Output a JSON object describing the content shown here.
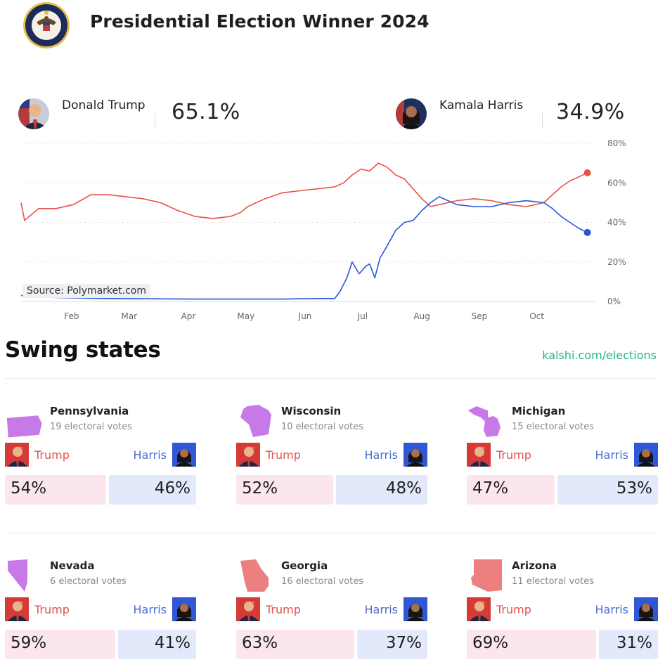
{
  "header": {
    "title": "Presidential Election Winner 2024",
    "seal_text": "SEAL OF THE PRESIDENT OF THE UNITED STATES"
  },
  "candidates": [
    {
      "name": "Donald Trump",
      "pct": "65.1%",
      "color": "#e8524a"
    },
    {
      "name": "Kamala Harris",
      "pct": "34.9%",
      "color": "#2b55d9"
    }
  ],
  "source": "Source: Polymarket.com",
  "chart_data": {
    "type": "line",
    "x_ticks": [
      "Feb",
      "Mar",
      "Apr",
      "May",
      "Jun",
      "Jul",
      "Aug",
      "Sep",
      "Oct"
    ],
    "y_ticks": [
      "0%",
      "20%",
      "40%",
      "60%",
      "80%"
    ],
    "ylim": [
      0,
      80
    ],
    "grid": true,
    "series": [
      {
        "name": "Donald Trump",
        "color": "#e8524a",
        "points": [
          [
            0,
            50
          ],
          [
            0.2,
            41
          ],
          [
            0.6,
            44
          ],
          [
            1,
            47
          ],
          [
            2,
            47
          ],
          [
            3,
            49
          ],
          [
            4,
            54
          ],
          [
            5,
            54
          ],
          [
            6,
            53
          ],
          [
            7,
            52
          ],
          [
            8,
            50
          ],
          [
            9,
            46
          ],
          [
            10,
            43
          ],
          [
            11,
            42
          ],
          [
            12,
            43
          ],
          [
            12.6,
            45
          ],
          [
            13,
            48
          ],
          [
            14,
            52
          ],
          [
            15,
            55
          ],
          [
            16,
            56
          ],
          [
            17,
            57
          ],
          [
            18,
            58
          ],
          [
            18.5,
            60
          ],
          [
            19,
            64
          ],
          [
            19.5,
            67
          ],
          [
            20,
            66
          ],
          [
            20.5,
            70
          ],
          [
            21,
            68
          ],
          [
            21.5,
            64
          ],
          [
            22,
            62
          ],
          [
            22.5,
            57
          ],
          [
            23,
            52
          ],
          [
            23.5,
            48
          ],
          [
            24,
            49
          ],
          [
            25,
            51
          ],
          [
            26,
            52
          ],
          [
            27,
            51
          ],
          [
            28,
            49
          ],
          [
            29,
            48
          ],
          [
            30,
            50
          ],
          [
            30.5,
            54
          ],
          [
            31,
            58
          ],
          [
            31.5,
            61
          ],
          [
            32,
            63
          ],
          [
            32.5,
            65.1
          ]
        ]
      },
      {
        "name": "Kamala Harris",
        "color": "#2b55d9",
        "points": [
          [
            0,
            3
          ],
          [
            2,
            2
          ],
          [
            5,
            1.5
          ],
          [
            10,
            1.2
          ],
          [
            15,
            1.2
          ],
          [
            17,
            1.5
          ],
          [
            18,
            1.5
          ],
          [
            18.3,
            5
          ],
          [
            18.7,
            12
          ],
          [
            19,
            20
          ],
          [
            19.4,
            14
          ],
          [
            19.8,
            18
          ],
          [
            20,
            19
          ],
          [
            20.3,
            12
          ],
          [
            20.6,
            22
          ],
          [
            21,
            28
          ],
          [
            21.5,
            36
          ],
          [
            22,
            40
          ],
          [
            22.5,
            41
          ],
          [
            23,
            46
          ],
          [
            23.5,
            50
          ],
          [
            24,
            53
          ],
          [
            25,
            49
          ],
          [
            26,
            48
          ],
          [
            27,
            48
          ],
          [
            28,
            50
          ],
          [
            29,
            51
          ],
          [
            30,
            50
          ],
          [
            30.5,
            47
          ],
          [
            31,
            43
          ],
          [
            31.5,
            40
          ],
          [
            32,
            37
          ],
          [
            32.5,
            34.9
          ]
        ]
      }
    ]
  },
  "swing": {
    "title": "Swing states",
    "link": "kalshi.com/elections",
    "trump_label": "Trump",
    "harris_label": "Harris",
    "states": [
      {
        "name": "Pennsylvania",
        "votes": "19 electoral votes",
        "trump": "54%",
        "harris": "46%",
        "trump_share": 0.54,
        "color": "#c779e8"
      },
      {
        "name": "Wisconsin",
        "votes": "10 electoral votes",
        "trump": "52%",
        "harris": "48%",
        "trump_share": 0.52,
        "color": "#c779e8"
      },
      {
        "name": "Michigan",
        "votes": "15 electoral votes",
        "trump": "47%",
        "harris": "53%",
        "trump_share": 0.47,
        "color": "#c779e8"
      },
      {
        "name": "Nevada",
        "votes": "6 electoral votes",
        "trump": "59%",
        "harris": "41%",
        "trump_share": 0.59,
        "color": "#c779e8"
      },
      {
        "name": "Georgia",
        "votes": "16 electoral votes",
        "trump": "63%",
        "harris": "37%",
        "trump_share": 0.63,
        "color": "#ec8080"
      },
      {
        "name": "Arizona",
        "votes": "11 electoral votes",
        "trump": "69%",
        "harris": "31%",
        "trump_share": 0.69,
        "color": "#ec8080"
      }
    ]
  },
  "icons": {
    "seal": "presidential-seal-icon",
    "trump_avatar": "trump-avatar",
    "harris_avatar": "harris-avatar"
  }
}
